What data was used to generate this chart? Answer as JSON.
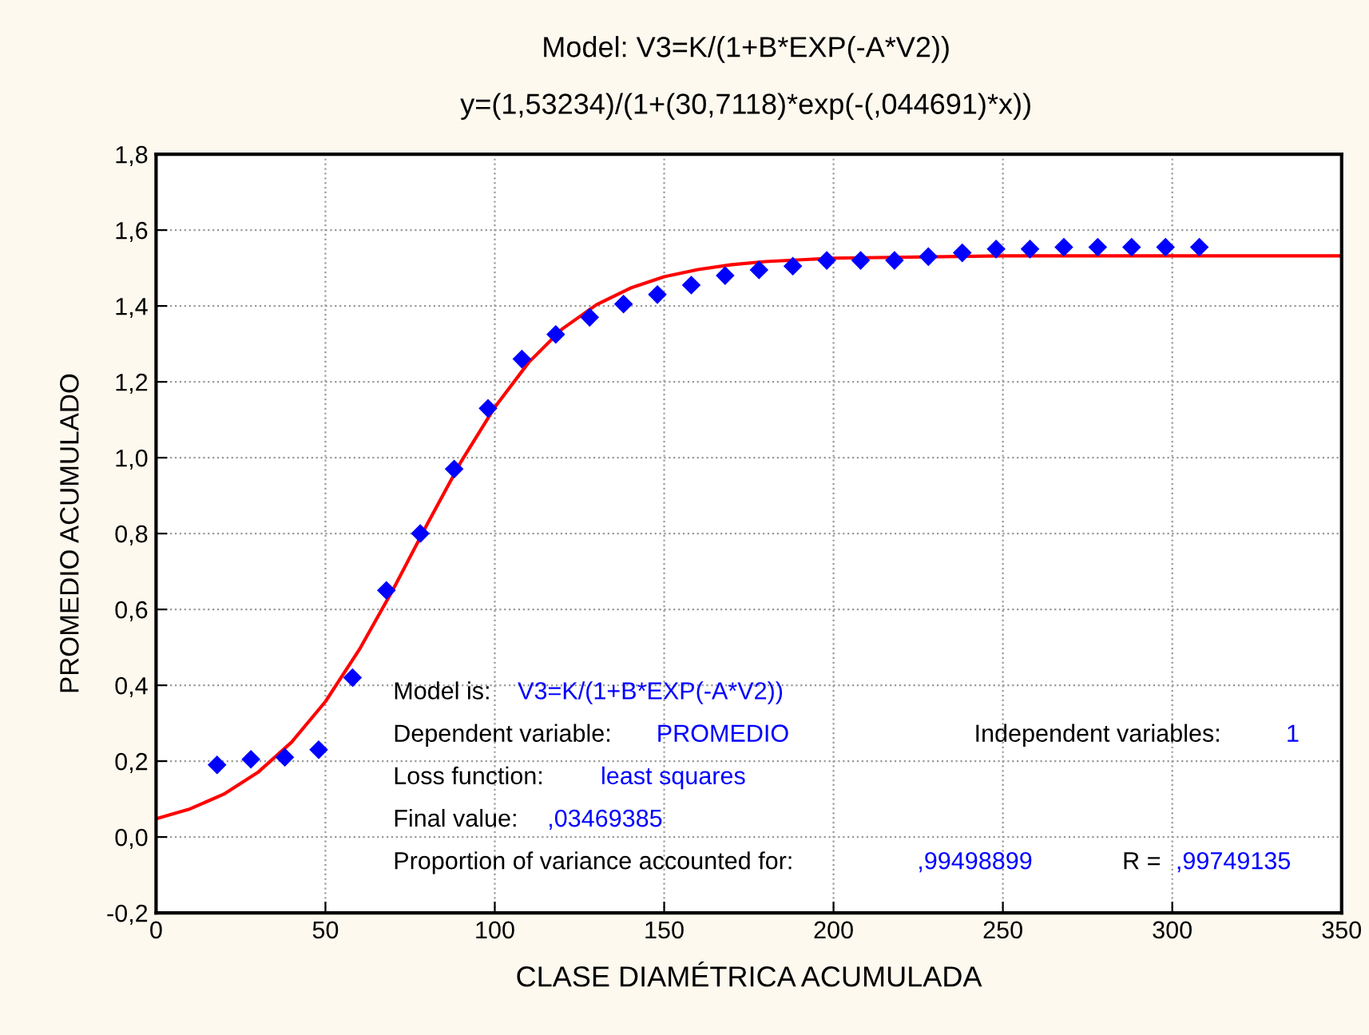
{
  "chart_data": {
    "type": "scatter",
    "title": "Model: V3=K/(1+B*EXP(-A*V2))",
    "subtitle": "y=(1,53234)/(1+(30,7118)*exp(-(,044691)*x))",
    "xlabel": "CLASE DIAMÉTRICA ACUMULADA",
    "ylabel": "PROMEDIO ACUMULADO",
    "series": [
      {
        "color": "#0000ff",
        "marker": "diamond",
        "x": [
          18,
          28,
          38,
          48,
          58,
          68,
          78,
          88,
          98,
          108,
          118,
          128,
          138,
          148,
          158,
          168,
          178,
          188,
          198,
          208,
          218,
          228,
          238,
          248,
          258,
          268,
          278,
          288,
          298,
          308
        ],
        "values": [
          0.19,
          0.205,
          0.21,
          0.23,
          0.42,
          0.65,
          0.8,
          0.97,
          1.13,
          1.26,
          1.325,
          1.37,
          1.405,
          1.43,
          1.455,
          1.48,
          1.495,
          1.505,
          1.52,
          1.52,
          1.52,
          1.53,
          1.54,
          1.55,
          1.55,
          1.555,
          1.555,
          1.555,
          1.555,
          1.555
        ]
      },
      {
        "type": "line",
        "color": "#ff0000",
        "line_style": "solid",
        "marker": "none",
        "x": [
          0,
          10,
          20,
          30,
          40,
          50,
          60,
          70,
          80,
          90,
          100,
          110,
          120,
          130,
          140,
          150,
          160,
          170,
          180,
          200,
          250,
          300,
          350
        ],
        "values": [
          0.048,
          0.074,
          0.113,
          0.17,
          0.25,
          0.357,
          0.494,
          0.653,
          0.824,
          0.989,
          1.133,
          1.251,
          1.34,
          1.403,
          1.447,
          1.477,
          1.496,
          1.509,
          1.517,
          1.526,
          1.532,
          1.532,
          1.532
        ]
      }
    ],
    "xlim": [
      0,
      350
    ],
    "xticks": [
      0,
      50,
      100,
      150,
      200,
      250,
      300,
      350
    ],
    "ylim": [
      -0.2,
      1.8
    ],
    "yticks": [
      {
        "value": -0.2,
        "label": "-0,2"
      },
      {
        "value": 0,
        "label": "0,0"
      },
      {
        "value": 0.2,
        "label": "0,2"
      },
      {
        "value": 0.4,
        "label": "0,4"
      },
      {
        "value": 0.6,
        "label": "0,6"
      },
      {
        "value": 0.8,
        "label": "0,8"
      },
      {
        "value": 1.0,
        "label": "1,0"
      },
      {
        "value": 1.2,
        "label": "1,2"
      },
      {
        "value": 1.4,
        "label": "1,4"
      },
      {
        "value": 1.6,
        "label": "1,6"
      },
      {
        "value": 1.8,
        "label": "1,8"
      }
    ],
    "grid": true,
    "legend": false,
    "annotations": [
      "Model is:",
      "V3=K/(1+B*EXP(-A*V2))",
      "Dependent variable:",
      "PROMEDIO",
      "Independent variables:",
      "1",
      "Loss function:",
      "least squares",
      "Final value:",
      ",03469385",
      "Proportion of variance accounted for:",
      ",99498899",
      "R =",
      ",99749135"
    ]
  }
}
